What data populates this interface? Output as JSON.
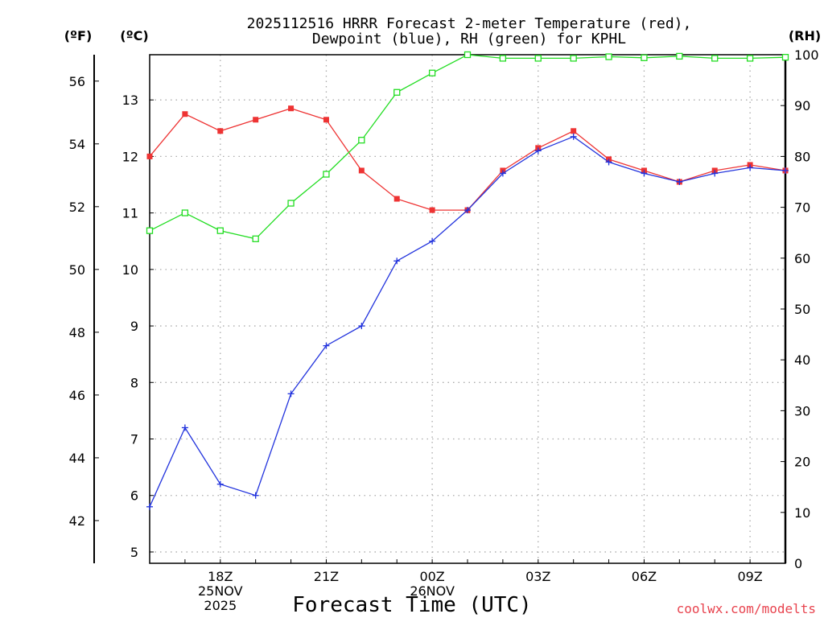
{
  "chart_data": {
    "type": "line",
    "title": [
      "2025112516 HRRR Forecast 2-meter Temperature (red),",
      "Dewpoint (blue), RH (green) for KPHL"
    ],
    "xlabel": "Forecast Time (UTC)",
    "credit": "coolwx.com/modelts",
    "units": {
      "f": "(ºF)",
      "c": "(ºC)",
      "rh": "(RH)"
    },
    "x_hours": [
      16,
      17,
      18,
      19,
      20,
      21,
      22,
      23,
      24,
      25,
      26,
      27,
      28,
      29,
      30,
      31,
      32,
      33,
      34
    ],
    "xlim": [
      16,
      34
    ],
    "x_ticks": [
      {
        "hour": 18,
        "lines": [
          "18Z",
          "25NOV",
          "2025"
        ]
      },
      {
        "hour": 21,
        "lines": [
          "21Z"
        ]
      },
      {
        "hour": 24,
        "lines": [
          "00Z",
          "26NOV"
        ]
      },
      {
        "hour": 27,
        "lines": [
          "03Z"
        ]
      },
      {
        "hour": 30,
        "lines": [
          "06Z"
        ]
      },
      {
        "hour": 33,
        "lines": [
          "09Z"
        ]
      }
    ],
    "y_celsius": {
      "ylim": [
        4.8,
        13.8
      ],
      "ticks": [
        "5",
        "6",
        "7",
        "8",
        "9",
        "10",
        "11",
        "12",
        "13"
      ]
    },
    "y_fahrenheit": {
      "ylim": [
        40.64,
        56.84
      ],
      "ticks": [
        "42",
        "44",
        "46",
        "48",
        "50",
        "52",
        "54",
        "56"
      ]
    },
    "y_rh": {
      "ylim": [
        0,
        100
      ],
      "ticks": [
        "0",
        "10",
        "20",
        "30",
        "40",
        "50",
        "60",
        "70",
        "80",
        "90",
        "100"
      ]
    },
    "series": [
      {
        "name": "Temperature",
        "axis": "celsius",
        "color": "#ee3333",
        "marker": "filled-square",
        "values": [
          12.0,
          12.75,
          12.45,
          12.65,
          12.85,
          12.65,
          11.75,
          11.25,
          11.05,
          11.05,
          11.75,
          12.15,
          12.45,
          11.95,
          11.75,
          11.55,
          11.75,
          11.85,
          11.75
        ]
      },
      {
        "name": "Dewpoint",
        "axis": "celsius",
        "color": "#2233dd",
        "marker": "plus",
        "values": [
          5.8,
          7.2,
          6.2,
          6.0,
          7.8,
          8.65,
          9.0,
          10.15,
          10.5,
          11.05,
          11.7,
          12.1,
          12.35,
          11.9,
          11.7,
          11.55,
          11.7,
          11.8,
          11.75
        ]
      },
      {
        "name": "Relative Humidity",
        "axis": "rh",
        "color": "#22dd22",
        "marker": "open-square",
        "values": [
          65.4,
          68.9,
          65.4,
          63.8,
          70.8,
          76.5,
          83.2,
          92.6,
          96.4,
          100.0,
          99.3,
          99.3,
          99.3,
          99.6,
          99.4,
          99.7,
          99.3,
          99.3,
          99.5
        ]
      }
    ]
  }
}
